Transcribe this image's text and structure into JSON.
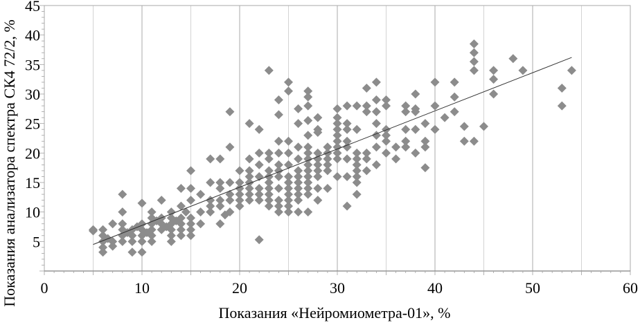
{
  "chart_data": {
    "type": "scatter",
    "title": "",
    "xlabel": "Показания «Нейромиометра-01», %",
    "ylabel": "Показания анализатора спектра СК4 72/2, %",
    "xlim": [
      0,
      60
    ],
    "ylim": [
      0,
      45
    ],
    "xticks": [
      "0",
      "10",
      "20",
      "30",
      "40",
      "50",
      "60"
    ],
    "yticks": [
      "5",
      "10",
      "15",
      "20",
      "25",
      "30",
      "35",
      "40",
      "45"
    ],
    "grid": "vertical major and minor",
    "marker_color": "#8c8c8c",
    "trendline": {
      "x": [
        5,
        54
      ],
      "y": [
        4.5,
        36.2
      ]
    },
    "points": [
      [
        5,
        7
      ],
      [
        5,
        6.8
      ],
      [
        6,
        7
      ],
      [
        6,
        6
      ],
      [
        6,
        5
      ],
      [
        6,
        4
      ],
      [
        6,
        3.2
      ],
      [
        6.5,
        5.5
      ],
      [
        7,
        8
      ],
      [
        7,
        5
      ],
      [
        7,
        4.2
      ],
      [
        8,
        13
      ],
      [
        8,
        10
      ],
      [
        8,
        8
      ],
      [
        8,
        7
      ],
      [
        8,
        6
      ],
      [
        8,
        5
      ],
      [
        8.5,
        6.5
      ],
      [
        9,
        7
      ],
      [
        9,
        6
      ],
      [
        9,
        5
      ],
      [
        9,
        3.2
      ],
      [
        9.5,
        7.5
      ],
      [
        10,
        11.5
      ],
      [
        10,
        8
      ],
      [
        10,
        7
      ],
      [
        10,
        6
      ],
      [
        10,
        5
      ],
      [
        10,
        3.2
      ],
      [
        10.5,
        6.5
      ],
      [
        11,
        10
      ],
      [
        11,
        9
      ],
      [
        11,
        8
      ],
      [
        11,
        7
      ],
      [
        11,
        6
      ],
      [
        11,
        5
      ],
      [
        11.5,
        8.5
      ],
      [
        12,
        12
      ],
      [
        12,
        9
      ],
      [
        12,
        8
      ],
      [
        12,
        7
      ],
      [
        12.5,
        7.5
      ],
      [
        13,
        10
      ],
      [
        13,
        9
      ],
      [
        13,
        8
      ],
      [
        13,
        7
      ],
      [
        13,
        6
      ],
      [
        13,
        5
      ],
      [
        13.5,
        8.5
      ],
      [
        14,
        14
      ],
      [
        14,
        11
      ],
      [
        14,
        9
      ],
      [
        14,
        8
      ],
      [
        14,
        7
      ],
      [
        14,
        6
      ],
      [
        14.5,
        10
      ],
      [
        15,
        17
      ],
      [
        15,
        14
      ],
      [
        15,
        12
      ],
      [
        15,
        9
      ],
      [
        15,
        8
      ],
      [
        15,
        7
      ],
      [
        15,
        6
      ],
      [
        16,
        13
      ],
      [
        16,
        10
      ],
      [
        16,
        8
      ],
      [
        17,
        19
      ],
      [
        17,
        15
      ],
      [
        17,
        12
      ],
      [
        17,
        11
      ],
      [
        17,
        10
      ],
      [
        18,
        19
      ],
      [
        18,
        15
      ],
      [
        18,
        14
      ],
      [
        18,
        12
      ],
      [
        18,
        11
      ],
      [
        18,
        8
      ],
      [
        18.5,
        9.5
      ],
      [
        19,
        27
      ],
      [
        19,
        21
      ],
      [
        19,
        15
      ],
      [
        19,
        13
      ],
      [
        19,
        12
      ],
      [
        19,
        10
      ],
      [
        20,
        17
      ],
      [
        20,
        15
      ],
      [
        20,
        14
      ],
      [
        20,
        13
      ],
      [
        20,
        12
      ],
      [
        20,
        11
      ],
      [
        21,
        19
      ],
      [
        21,
        17
      ],
      [
        21,
        16
      ],
      [
        21,
        15
      ],
      [
        21,
        14
      ],
      [
        21,
        13
      ],
      [
        21,
        12
      ],
      [
        21,
        25
      ],
      [
        22,
        24
      ],
      [
        22,
        20
      ],
      [
        22,
        18
      ],
      [
        22,
        16
      ],
      [
        22,
        14
      ],
      [
        22,
        13
      ],
      [
        22,
        12
      ],
      [
        22,
        5.3
      ],
      [
        23,
        34
      ],
      [
        23,
        20
      ],
      [
        23,
        19
      ],
      [
        23,
        17
      ],
      [
        23,
        16
      ],
      [
        23,
        15
      ],
      [
        23,
        14
      ],
      [
        23,
        13
      ],
      [
        23,
        12
      ],
      [
        23,
        11
      ],
      [
        24,
        29
      ],
      [
        24,
        26.5
      ],
      [
        24,
        22
      ],
      [
        24,
        20
      ],
      [
        24,
        18
      ],
      [
        24,
        17
      ],
      [
        24,
        16
      ],
      [
        24,
        14
      ],
      [
        24,
        12
      ],
      [
        24,
        11
      ],
      [
        24,
        10
      ],
      [
        25,
        32
      ],
      [
        25,
        30.5
      ],
      [
        25,
        22
      ],
      [
        25,
        20
      ],
      [
        25,
        18
      ],
      [
        25,
        16
      ],
      [
        25,
        15
      ],
      [
        25,
        14
      ],
      [
        25,
        13
      ],
      [
        25,
        12
      ],
      [
        25,
        11
      ],
      [
        25,
        10
      ],
      [
        26,
        27.5
      ],
      [
        26,
        25
      ],
      [
        26,
        21
      ],
      [
        26,
        19
      ],
      [
        26,
        17
      ],
      [
        26,
        16
      ],
      [
        26,
        15
      ],
      [
        26,
        14
      ],
      [
        26,
        13
      ],
      [
        26,
        12
      ],
      [
        26,
        10
      ],
      [
        27,
        30.5
      ],
      [
        27,
        29.5
      ],
      [
        27,
        28
      ],
      [
        27,
        25.5
      ],
      [
        27,
        23
      ],
      [
        27,
        21
      ],
      [
        27,
        20
      ],
      [
        27,
        19
      ],
      [
        27,
        18
      ],
      [
        27,
        17
      ],
      [
        27,
        16
      ],
      [
        27,
        15
      ],
      [
        27,
        14
      ],
      [
        27,
        13
      ],
      [
        27,
        10
      ],
      [
        28,
        26
      ],
      [
        28,
        24
      ],
      [
        28,
        23.5
      ],
      [
        28,
        20
      ],
      [
        28,
        19
      ],
      [
        28,
        18
      ],
      [
        28,
        17
      ],
      [
        28,
        16
      ],
      [
        28,
        14
      ],
      [
        28,
        12
      ],
      [
        29,
        21
      ],
      [
        29,
        20
      ],
      [
        29,
        19
      ],
      [
        29,
        18
      ],
      [
        29,
        17
      ],
      [
        29,
        14
      ],
      [
        30,
        27.5
      ],
      [
        30,
        26
      ],
      [
        30,
        25
      ],
      [
        30,
        24
      ],
      [
        30,
        23
      ],
      [
        30,
        22
      ],
      [
        30,
        21
      ],
      [
        30,
        20
      ],
      [
        30,
        19
      ],
      [
        30,
        16
      ],
      [
        31,
        28
      ],
      [
        31,
        25
      ],
      [
        31,
        24
      ],
      [
        31,
        22
      ],
      [
        31,
        21
      ],
      [
        31,
        19
      ],
      [
        31,
        16
      ],
      [
        31,
        11
      ],
      [
        32,
        28
      ],
      [
        32,
        24
      ],
      [
        32,
        20
      ],
      [
        32,
        19
      ],
      [
        32,
        18
      ],
      [
        32,
        17
      ],
      [
        32,
        16
      ],
      [
        32,
        15
      ],
      [
        32,
        13
      ],
      [
        33,
        31
      ],
      [
        33,
        28
      ],
      [
        33,
        27
      ],
      [
        33,
        20
      ],
      [
        33,
        19
      ],
      [
        33,
        17
      ],
      [
        34,
        32
      ],
      [
        34,
        29
      ],
      [
        34,
        27
      ],
      [
        34,
        25
      ],
      [
        34,
        23
      ],
      [
        34,
        21
      ],
      [
        34,
        18
      ],
      [
        35,
        29
      ],
      [
        35,
        28
      ],
      [
        35,
        24
      ],
      [
        35,
        23
      ],
      [
        35,
        22
      ],
      [
        35,
        20
      ],
      [
        36,
        21
      ],
      [
        36,
        19
      ],
      [
        37,
        28
      ],
      [
        37,
        27
      ],
      [
        37,
        24
      ],
      [
        37,
        22
      ],
      [
        37,
        21
      ],
      [
        38,
        30
      ],
      [
        38,
        27.5
      ],
      [
        38,
        27
      ],
      [
        38,
        24
      ],
      [
        38,
        20
      ],
      [
        39,
        25
      ],
      [
        39,
        22
      ],
      [
        39,
        21
      ],
      [
        39,
        17.5
      ],
      [
        40,
        32
      ],
      [
        40,
        28
      ],
      [
        40,
        24
      ],
      [
        41,
        26
      ],
      [
        42,
        32
      ],
      [
        42,
        29.5
      ],
      [
        42,
        27
      ],
      [
        43,
        24.5
      ],
      [
        43,
        22
      ],
      [
        44,
        38.5
      ],
      [
        44,
        37
      ],
      [
        44,
        35.5
      ],
      [
        44,
        34
      ],
      [
        44,
        22
      ],
      [
        45,
        24.5
      ],
      [
        46,
        34
      ],
      [
        46,
        32.5
      ],
      [
        46,
        30
      ],
      [
        48,
        36
      ],
      [
        49,
        34
      ],
      [
        53,
        31
      ],
      [
        53,
        28
      ],
      [
        54,
        34
      ]
    ]
  }
}
